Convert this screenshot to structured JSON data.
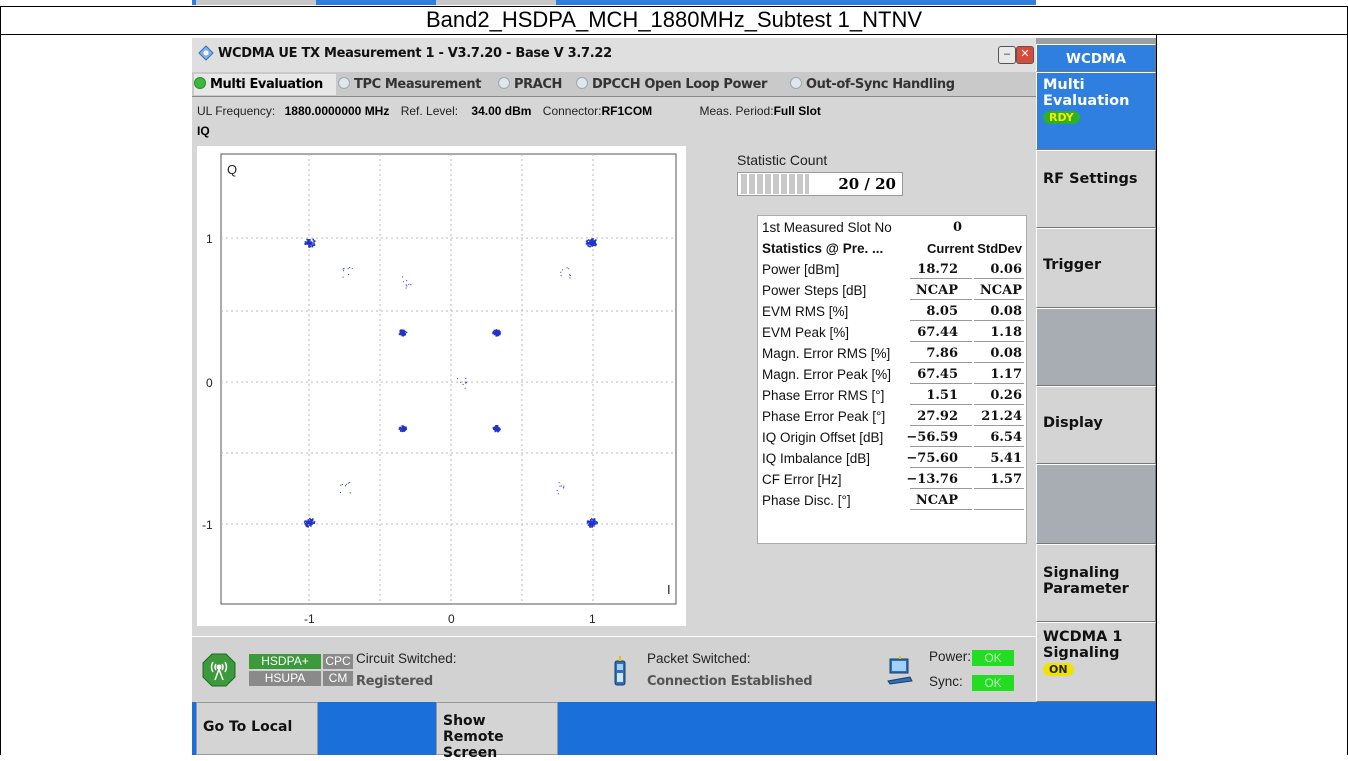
{
  "caption": "Band2_HSDPA_MCH_1880MHz_Subtest 1_NTNV",
  "window": {
    "title": "WCDMA UE TX Measurement 1 - V3.7.20 - Base V 3.7.22",
    "minimize_label": "–",
    "close_label": "✕"
  },
  "tabs": [
    {
      "label": "Multi Evaluation",
      "active": true
    },
    {
      "label": "TPC Measurement",
      "active": false
    },
    {
      "label": "PRACH",
      "active": false
    },
    {
      "label": "DPCCH Open Loop Power",
      "active": false
    },
    {
      "label": "Out-of-Sync Handling",
      "active": false
    }
  ],
  "info": {
    "ul_freq_label": "UL Frequency:",
    "ul_freq_value": "1880.0000000 MHz",
    "ref_level_label": "Ref. Level:",
    "ref_level_value": "34.00 dBm",
    "connector_label": "Connector:",
    "connector_value": "RF1COM",
    "meas_period_label": "Meas. Period:",
    "meas_period_value": "Full Slot"
  },
  "iq_label": "IQ",
  "plot": {
    "axis_q": "Q",
    "axis_i": "I",
    "y_ticks": [
      "1",
      "0",
      "-1"
    ],
    "x_ticks": [
      "-1",
      "0",
      "1"
    ]
  },
  "statistic": {
    "title": "Statistic Count",
    "count": "20 / 20",
    "progress": 1.0
  },
  "stats": {
    "slot_label": "1st Measured Slot No",
    "slot_value": "0",
    "header_label": "Statistics @ Pre. ...",
    "header_current": "Current",
    "header_stddev": "StdDev",
    "rows": [
      {
        "label": "Power [dBm]",
        "current": "18.72",
        "stddev": "0.06"
      },
      {
        "label": "Power Steps [dB]",
        "current": "NCAP",
        "stddev": "NCAP"
      },
      {
        "label": "EVM RMS [%]",
        "current": "8.05",
        "stddev": "0.08"
      },
      {
        "label": "EVM Peak [%]",
        "current": "67.44",
        "stddev": "1.18"
      },
      {
        "label": "Magn. Error RMS [%]",
        "current": "7.86",
        "stddev": "0.08"
      },
      {
        "label": "Magn. Error Peak [%]",
        "current": "67.45",
        "stddev": "1.17"
      },
      {
        "label": "Phase Error RMS [°]",
        "current": "1.51",
        "stddev": "0.26"
      },
      {
        "label": "Phase Error Peak [°]",
        "current": "27.92",
        "stddev": "21.24"
      },
      {
        "label": "IQ Origin Offset [dB]",
        "current": "−56.59",
        "stddev": "6.54"
      },
      {
        "label": "IQ Imbalance [dB]",
        "current": "−75.60",
        "stddev": "5.41"
      },
      {
        "label": "CF Error [Hz]",
        "current": "−13.76",
        "stddev": "1.57"
      },
      {
        "label": "Phase Disc. [°]",
        "current": "NCAP",
        "stddev": ""
      }
    ]
  },
  "status": {
    "hsdpa": "HSDPA+",
    "cpc": "CPC",
    "hsupa": "HSUPA",
    "cm": "CM",
    "circuit_label": "Circuit Switched:",
    "circuit_value": "Registered",
    "packet_label": "Packet Switched:",
    "packet_value": "Connection Established",
    "power_label": "Power:",
    "power_value": "OK",
    "sync_label": "Sync:",
    "sync_value": "OK"
  },
  "sidebar": {
    "header": "WCDMA",
    "multi": "Multi Evaluation",
    "multi_badge": "RDY",
    "rf": "RF Settings",
    "trigger": "Trigger",
    "display": "Display",
    "signaling_param": "Signaling Parameter",
    "wcdma_sig": "WCDMA 1 Signaling",
    "wcdma_sig_badge": "ON"
  },
  "bottom": {
    "go_local": "Go To Local",
    "show_remote": "Show Remote Screen"
  },
  "colors": {
    "blue": "#2f7fe0",
    "scatter": "#2233cc",
    "ok": "#22dd22",
    "badge": "#f2e200"
  }
}
